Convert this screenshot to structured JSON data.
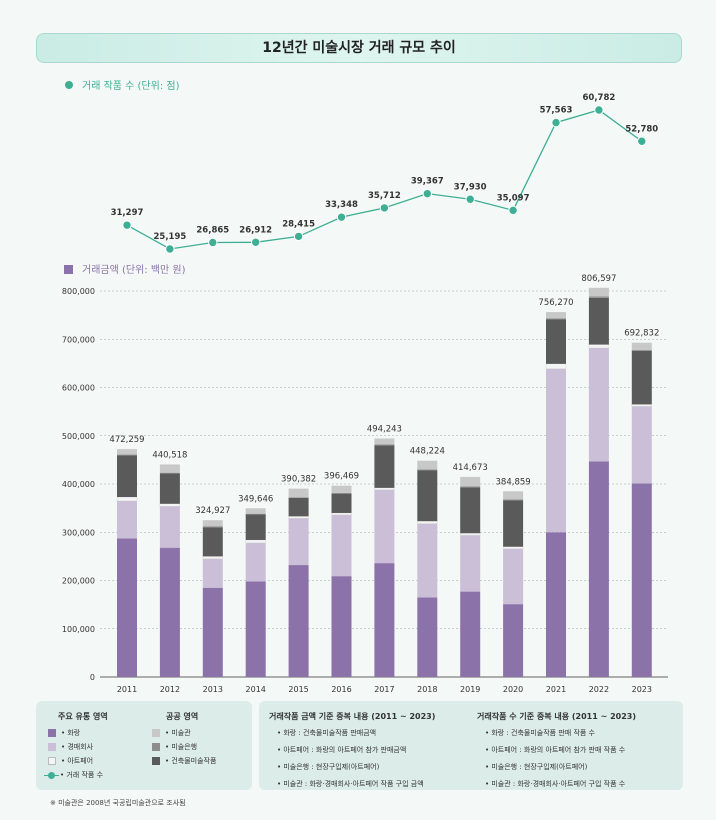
{
  "title": "12년간 미술시장 거래 규모 추이",
  "colors": {
    "hwarang": "#8b72a8",
    "auction": "#cbbfd8",
    "artfair": "#f4f4f4",
    "museum": "#c8c8c8",
    "artbank": "#8d8d8d",
    "building": "#5a5a5a",
    "line": "#3eaf94",
    "line_text": "#3eaf94",
    "bar_text": "#8b72a8"
  },
  "chart_data": [
    {
      "type": "line",
      "legend_label": "거래 작품 수 (단위: 점)",
      "x": [
        "2011",
        "2012",
        "2013",
        "2014",
        "2015",
        "2016",
        "2017",
        "2018",
        "2019",
        "2020",
        "2021",
        "2022",
        "2023"
      ],
      "values": [
        31297,
        25195,
        26865,
        26912,
        28415,
        33348,
        35712,
        39367,
        37930,
        35097,
        57563,
        60782,
        52780
      ],
      "labels": [
        "31,297",
        "25,195",
        "26,865",
        "26,912",
        "28,415",
        "33,348",
        "35,712",
        "39,367",
        "37,930",
        "35,097",
        "57,563",
        "60,782",
        "52,780"
      ]
    },
    {
      "type": "bar",
      "stacked": true,
      "legend_label": "거래금액 (단위: 백만 원)",
      "categories": [
        "2011",
        "2012",
        "2013",
        "2014",
        "2015",
        "2016",
        "2017",
        "2018",
        "2019",
        "2020",
        "2021",
        "2022",
        "2023"
      ],
      "ylim": [
        0,
        800000
      ],
      "yticks": [
        "0",
        "100,000",
        "200,000",
        "300,000",
        "400,000",
        "500,000",
        "600,000",
        "700,000",
        "800,000"
      ],
      "totals": [
        472259,
        440518,
        324927,
        349646,
        390382,
        396469,
        494243,
        448224,
        414673,
        384859,
        756270,
        806597,
        692832
      ],
      "total_labels": [
        "472,259",
        "440,518",
        "324,927",
        "349,646",
        "390,382",
        "396,469",
        "494,243",
        "448,224",
        "414,673",
        "384,859",
        "756,270",
        "806,597",
        "692,832"
      ],
      "series": [
        {
          "key": "hwarang",
          "values": [
            287000,
            268000,
            185000,
            198000,
            232000,
            209000,
            236000,
            165000,
            177000,
            151000,
            300000,
            447000,
            401000
          ]
        },
        {
          "key": "auction",
          "values": [
            78000,
            86000,
            60000,
            80000,
            97000,
            127000,
            152000,
            153000,
            117000,
            115000,
            339000,
            235000,
            160000
          ]
        },
        {
          "key": "artfair",
          "values": [
            8000,
            5000,
            5000,
            6000,
            4000,
            4000,
            4000,
            5000,
            4000,
            4000,
            10000,
            7000,
            4000
          ]
        },
        {
          "key": "building",
          "values": [
            86000,
            63000,
            60000,
            53000,
            38000,
            40000,
            88000,
            105000,
            95000,
            96000,
            92000,
            97000,
            111000
          ]
        },
        {
          "key": "artbank",
          "values": [
            2000,
            1500,
            2500,
            1500,
            1500,
            1500,
            2000,
            2000,
            2000,
            2000,
            2000,
            3000,
            2000
          ]
        },
        {
          "key": "museum",
          "values": [
            11259,
            17018,
            12427,
            11146,
            17882,
            14969,
            12243,
            18224,
            19673,
            16859,
            13270,
            17597,
            14832
          ]
        }
      ]
    }
  ],
  "legend": {
    "group1_title": "주요 유통 영역",
    "group2_title": "공공 영역",
    "hwarang": "• 화랑",
    "auction": "• 경매회사",
    "artfair": "• 아트페어",
    "count": "• 거래 작품 수",
    "museum": "• 미술관",
    "artbank": "• 미술은행",
    "building": "• 건축물미술작품"
  },
  "notes": {
    "col1_title": "거래작품 금액 기준 중복 내용 (2011 ~ 2023)",
    "col1_items": [
      "• 화랑 : 건축물미술작품 판매금액",
      "• 아트페어 : 화랑의 아트페어 참가 판매금액",
      "• 미술은행 : 현장구입제(아트페어)",
      "• 미술관 : 화랑·경매회사·아트페어 작품 구입 금액"
    ],
    "col2_title": "거래작품 수 기준 중복 내용 (2011 ~ 2023)",
    "col2_items": [
      "• 화랑 : 건축물미술작품 판매 작품 수",
      "• 아트페어 : 화랑의 아트페어 참가 판매 작품 수",
      "• 미술은행 : 현장구입제(아트페어)",
      "• 미술관 : 화랑·경매회사·아트페어 구입 작품 수"
    ]
  },
  "footnote": "※ 미술관은 2008년 국공립미술관으로 조사됨"
}
